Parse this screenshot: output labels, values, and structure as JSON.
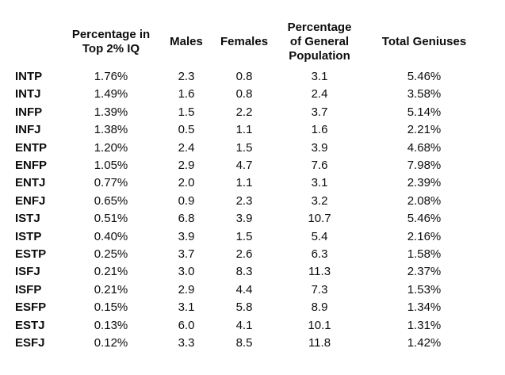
{
  "colors": {
    "background": "#ffffff",
    "text": "#0d0d0d"
  },
  "chart_data": {
    "type": "table",
    "columns": [
      {
        "id": "type",
        "lines": [
          ""
        ]
      },
      {
        "id": "pct_top2_iq",
        "lines": [
          "Percentage in",
          "Top 2% IQ"
        ]
      },
      {
        "id": "males",
        "lines": [
          "Males"
        ]
      },
      {
        "id": "females",
        "lines": [
          "Females"
        ]
      },
      {
        "id": "pct_general_population",
        "lines": [
          "Percentage",
          "of General",
          "Population"
        ]
      },
      {
        "id": "total_geniuses",
        "lines": [
          "Total Geniuses"
        ]
      }
    ],
    "rows": [
      [
        "INTP",
        "1.76%",
        "2.3",
        "0.8",
        "3.1",
        "5.46%"
      ],
      [
        "INTJ",
        "1.49%",
        "1.6",
        "0.8",
        "2.4",
        "3.58%"
      ],
      [
        "INFP",
        "1.39%",
        "1.5",
        "2.2",
        "3.7",
        "5.14%"
      ],
      [
        "INFJ",
        "1.38%",
        "0.5",
        "1.1",
        "1.6",
        "2.21%"
      ],
      [
        "ENTP",
        "1.20%",
        "2.4",
        "1.5",
        "3.9",
        "4.68%"
      ],
      [
        "ENFP",
        "1.05%",
        "2.9",
        "4.7",
        "7.6",
        "7.98%"
      ],
      [
        "ENTJ",
        "0.77%",
        "2.0",
        "1.1",
        "3.1",
        "2.39%"
      ],
      [
        "ENFJ",
        "0.65%",
        "0.9",
        "2.3",
        "3.2",
        "2.08%"
      ],
      [
        "ISTJ",
        "0.51%",
        "6.8",
        "3.9",
        "10.7",
        "5.46%"
      ],
      [
        "ISTP",
        "0.40%",
        "3.9",
        "1.5",
        "5.4",
        "2.16%"
      ],
      [
        "ESTP",
        "0.25%",
        "3.7",
        "2.6",
        "6.3",
        "1.58%"
      ],
      [
        "ISFJ",
        "0.21%",
        "3.0",
        "8.3",
        "11.3",
        "2.37%"
      ],
      [
        "ISFP",
        "0.21%",
        "2.9",
        "4.4",
        "7.3",
        "1.53%"
      ],
      [
        "ESFP",
        "0.15%",
        "3.1",
        "5.8",
        "8.9",
        "1.34%"
      ],
      [
        "ESTJ",
        "0.13%",
        "6.0",
        "4.1",
        "10.1",
        "1.31%"
      ],
      [
        "ESFJ",
        "0.12%",
        "3.3",
        "8.5",
        "11.8",
        "1.42%"
      ]
    ]
  }
}
